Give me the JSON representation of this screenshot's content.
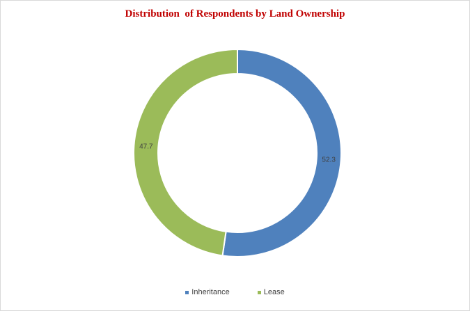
{
  "chart_data": {
    "type": "pie",
    "title": "Distribution  of Respondents by Land Ownership",
    "categories": [
      "Inheritance",
      "Lease"
    ],
    "values": [
      52.3,
      47.7
    ],
    "data_labels": [
      "52.3",
      "47.7"
    ],
    "colors": [
      "#4f81bd",
      "#9bbb59"
    ],
    "donut": true,
    "legend_position": "bottom"
  }
}
